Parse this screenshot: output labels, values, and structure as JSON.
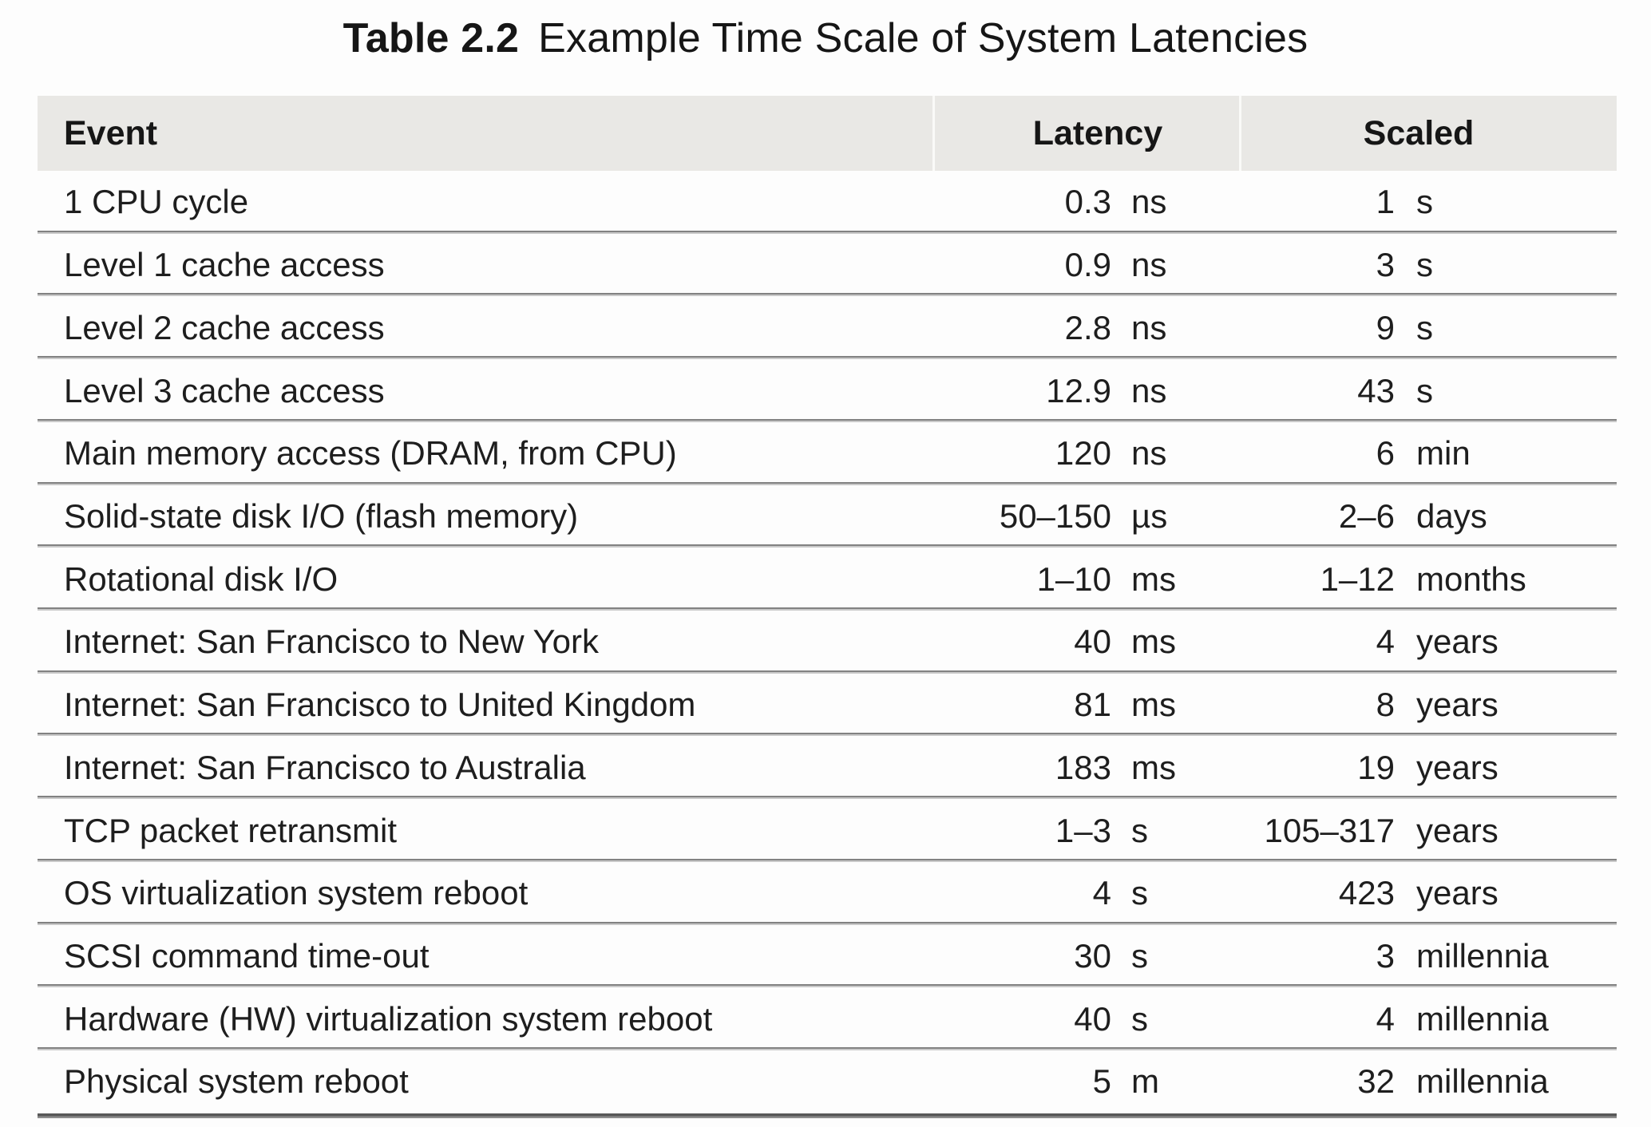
{
  "title": {
    "label": "Table 2.2",
    "text": "Example Time Scale of System Latencies"
  },
  "table": {
    "columns": {
      "event": "Event",
      "latency": "Latency",
      "scaled": "Scaled"
    },
    "rows": [
      {
        "event": "1 CPU cycle",
        "latency_value": "0.3",
        "latency_unit": "ns",
        "scaled_value": "1",
        "scaled_unit": "s"
      },
      {
        "event": "Level 1 cache access",
        "latency_value": "0.9",
        "latency_unit": "ns",
        "scaled_value": "3",
        "scaled_unit": "s"
      },
      {
        "event": "Level 2 cache access",
        "latency_value": "2.8",
        "latency_unit": "ns",
        "scaled_value": "9",
        "scaled_unit": "s"
      },
      {
        "event": "Level 3 cache access",
        "latency_value": "12.9",
        "latency_unit": "ns",
        "scaled_value": "43",
        "scaled_unit": "s"
      },
      {
        "event": "Main memory access (DRAM, from CPU)",
        "latency_value": "120",
        "latency_unit": "ns",
        "scaled_value": "6",
        "scaled_unit": "min"
      },
      {
        "event": "Solid-state disk I/O (flash memory)",
        "latency_value": "50–150",
        "latency_unit": "µs",
        "scaled_value": "2–6",
        "scaled_unit": "days"
      },
      {
        "event": "Rotational disk I/O",
        "latency_value": "1–10",
        "latency_unit": "ms",
        "scaled_value": "1–12",
        "scaled_unit": "months"
      },
      {
        "event": "Internet: San Francisco to New York",
        "latency_value": "40",
        "latency_unit": "ms",
        "scaled_value": "4",
        "scaled_unit": "years"
      },
      {
        "event": "Internet: San Francisco to United Kingdom",
        "latency_value": "81",
        "latency_unit": "ms",
        "scaled_value": "8",
        "scaled_unit": "years"
      },
      {
        "event": "Internet: San Francisco to Australia",
        "latency_value": "183",
        "latency_unit": "ms",
        "scaled_value": "19",
        "scaled_unit": "years"
      },
      {
        "event": "TCP packet retransmit",
        "latency_value": "1–3",
        "latency_unit": "s",
        "scaled_value": "105–317",
        "scaled_unit": "years"
      },
      {
        "event": "OS virtualization system reboot",
        "latency_value": "4",
        "latency_unit": "s",
        "scaled_value": "423",
        "scaled_unit": "years"
      },
      {
        "event": "SCSI command time-out",
        "latency_value": "30",
        "latency_unit": "s",
        "scaled_value": "3",
        "scaled_unit": "millennia"
      },
      {
        "event": "Hardware (HW) virtualization system reboot",
        "latency_value": "40",
        "latency_unit": "s",
        "scaled_value": "4",
        "scaled_unit": "millennia"
      },
      {
        "event": "Physical system reboot",
        "latency_value": "5",
        "latency_unit": "m",
        "scaled_value": "32",
        "scaled_unit": "millennia"
      }
    ]
  },
  "colors": {
    "header_bg": "#e9e8e5",
    "row_divider": "#828282",
    "bottom_border": "#585858",
    "text": "#1e1e1e"
  }
}
